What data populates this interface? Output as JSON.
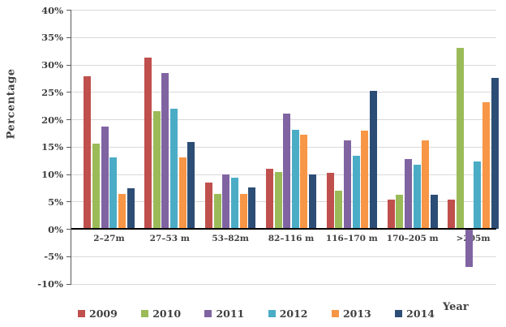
{
  "chart_data": {
    "type": "bar",
    "title": "",
    "ylabel": "Percentage",
    "xlabel": "Year",
    "categories": [
      "2–27m",
      "27–53 m",
      "53–82m",
      "82–116 m",
      "116–170 m",
      "170–205 m",
      ">205m"
    ],
    "series": [
      {
        "name": "2009",
        "color": "#C0504D",
        "values": [
          27.8,
          31.2,
          8.5,
          11.0,
          10.2,
          5.3,
          5.4
        ]
      },
      {
        "name": "2010",
        "color": "#9BBB59",
        "values": [
          15.6,
          21.5,
          6.3,
          10.3,
          6.9,
          6.2,
          33.1
        ]
      },
      {
        "name": "2011",
        "color": "#8064A2",
        "values": [
          18.6,
          28.4,
          9.9,
          21.0,
          16.1,
          12.8,
          -6.8
        ]
      },
      {
        "name": "2012",
        "color": "#4BACC6",
        "values": [
          13.0,
          21.9,
          9.4,
          18.1,
          13.4,
          11.7,
          12.3
        ]
      },
      {
        "name": "2013",
        "color": "#F79646",
        "values": [
          6.4,
          13.1,
          6.4,
          17.2,
          17.9,
          16.1,
          23.1
        ]
      },
      {
        "name": "2014",
        "color": "#2C4D75",
        "values": [
          7.4,
          15.9,
          7.6,
          9.9,
          25.2,
          6.2,
          27.5
        ]
      }
    ],
    "ylim": [
      -10,
      40
    ],
    "ytick_step": 5,
    "ytick_labels": [
      "40%",
      "35%",
      "30%",
      "25%",
      "20%",
      "15%",
      "10%",
      "5%",
      "0%",
      "-5%",
      "-10%"
    ],
    "grid": "horizontal",
    "legend_position": "bottom"
  },
  "colors": {
    "text": "#404040",
    "grid": "#D9D9D9",
    "axis": "#595959",
    "zero_line": "#000000",
    "background": "#FFFFFF"
  }
}
